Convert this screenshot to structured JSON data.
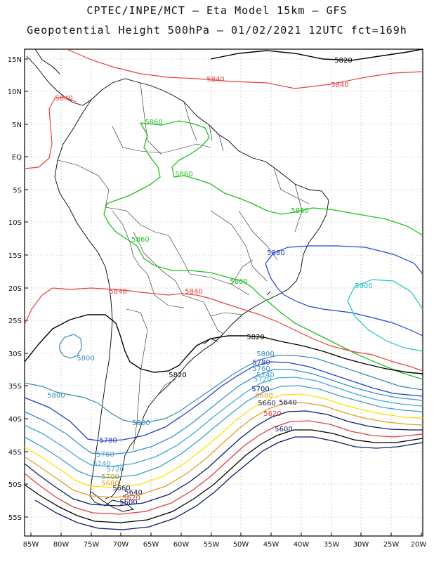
{
  "header": {
    "line1": "CPTEC/INPE/MCT –  Eta Model 15km – GFS",
    "line2": "Geopotential Height 500hPa – 01/02/2021 12UTC fct=169h"
  },
  "axes": {
    "lat_labels": [
      "15N",
      "10N",
      "5N",
      "EQ",
      "5S",
      "10S",
      "15S",
      "20S",
      "25S",
      "30S",
      "35S",
      "40S",
      "45S",
      "50S",
      "55S"
    ],
    "lon_labels": [
      "85W",
      "80W",
      "75W",
      "70W",
      "65W",
      "60W",
      "55W",
      "50W",
      "45W",
      "40W",
      "35W",
      "30W",
      "25W",
      "20W"
    ]
  },
  "contours": [
    {
      "label": "5820",
      "color": "#000000"
    },
    {
      "label": "5840",
      "color": "#e8403c"
    },
    {
      "label": "5860",
      "color": "#20c020"
    },
    {
      "label": "5880",
      "color": "#2040d8"
    },
    {
      "label": "5900",
      "color": "#20c0c8"
    },
    {
      "label": "5800",
      "color": "#3a8ab8"
    },
    {
      "label": "5780",
      "color": "#1f3fc8"
    },
    {
      "label": "5760",
      "color": "#3f8fd0"
    },
    {
      "label": "5740",
      "color": "#40a8d8"
    },
    {
      "label": "5720",
      "color": "#40a0c0"
    },
    {
      "label": "5700",
      "color": "#ffe000"
    },
    {
      "label": "5680",
      "color": "#e0a020"
    },
    {
      "label": "5660",
      "color": "#0a1a6a"
    },
    {
      "label": "5640",
      "color": "#e04040"
    },
    {
      "label": "5620",
      "color": "#000000"
    },
    {
      "label": "5600",
      "color": "#0a1a6a"
    }
  ],
  "labels": {
    "l5820a": "5820",
    "l5820b": "5820",
    "l5820c": "5820",
    "l5840a": "5840",
    "l5840b": "5840",
    "l5840c": "5840",
    "l5840d": "5840",
    "l5840e": "5840",
    "l5860a": "5860",
    "l5860b": "5860",
    "l5860c": "5860",
    "l5860d": "5860",
    "l5860e": "5860",
    "l5880": "5880",
    "l5900": "5900",
    "l5800a": "5800",
    "l5800b": "5800",
    "l5800c": "5800",
    "l5800d": "5800",
    "l5780a": "5780",
    "l5780b": "5780",
    "l5760a": "5760",
    "l5760b": "5760",
    "l5740a": "5740",
    "l5740b": "5740",
    "l5720a": "5720",
    "l5720b": "5720",
    "l5700a": "5700",
    "l5700b": "5700",
    "l5680a": "5680",
    "l5680b": "5680",
    "l5660a": "5660",
    "l5660b": "5660",
    "l5640a": "5640",
    "l5640b": "5640",
    "l5620a": "5620",
    "l5620b": "5620",
    "l5600a": "5600",
    "l5600b": "5600"
  }
}
